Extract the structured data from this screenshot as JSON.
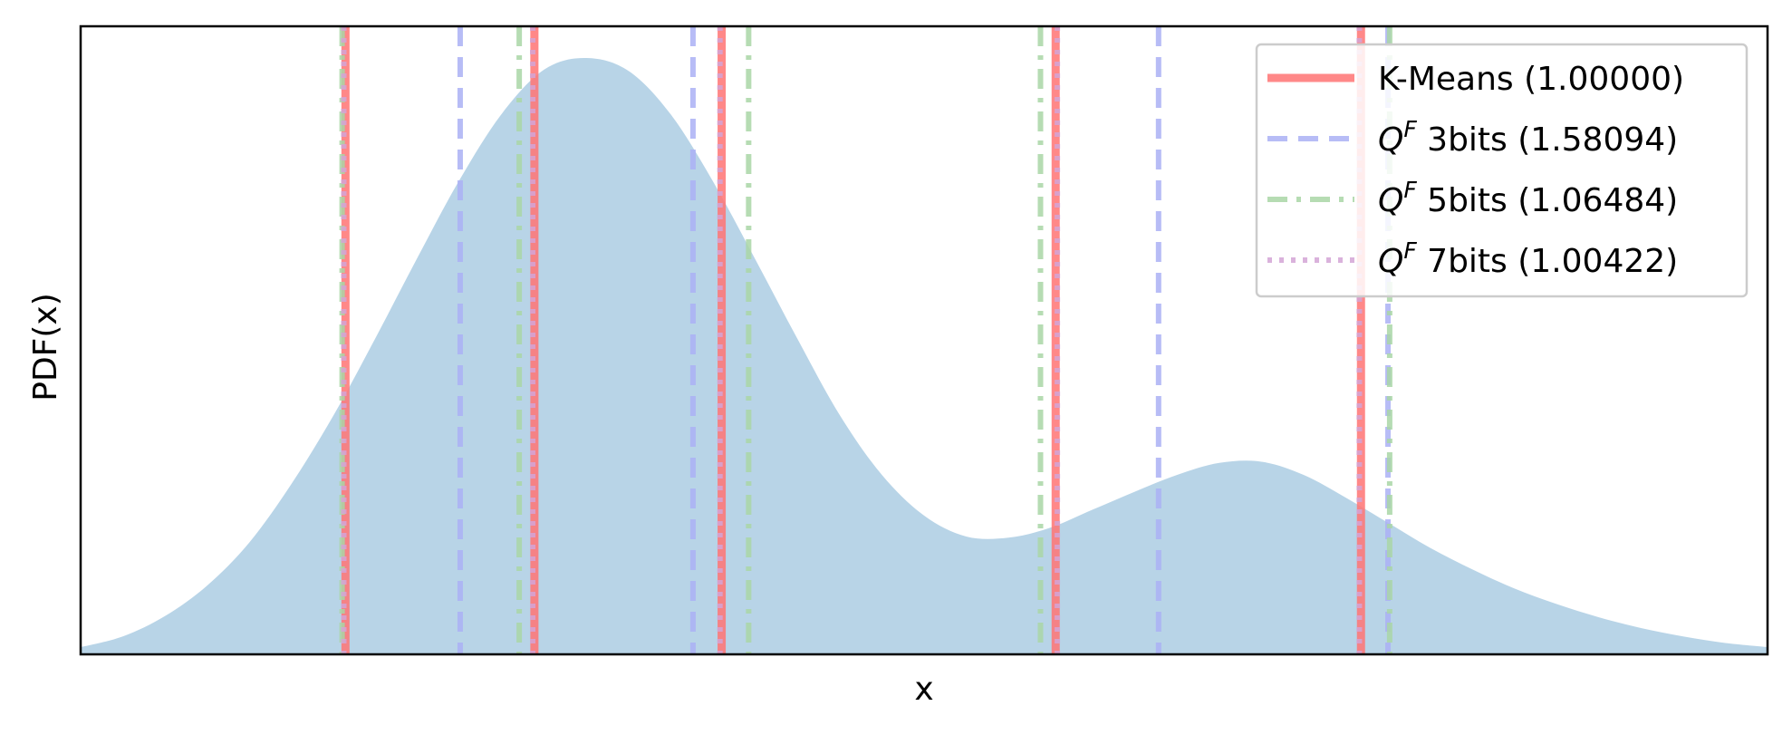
{
  "chart_data": {
    "type": "area",
    "title": "",
    "xlabel": "x",
    "ylabel": "PDF(x)",
    "xlim": [
      0,
      1
    ],
    "ylim": [
      0,
      1.05
    ],
    "x_ticks_shown": false,
    "y_ticks_shown": false,
    "grid": false,
    "legend_position": "top-right",
    "density_color": "#b8d4e7",
    "density_curve": {
      "x": [
        0.0,
        0.025,
        0.05,
        0.075,
        0.1,
        0.125,
        0.15,
        0.175,
        0.2,
        0.225,
        0.25,
        0.275,
        0.3,
        0.325,
        0.35,
        0.375,
        0.4,
        0.425,
        0.45,
        0.475,
        0.5,
        0.525,
        0.55,
        0.575,
        0.6,
        0.625,
        0.65,
        0.675,
        0.7,
        0.725,
        0.75,
        0.775,
        0.8,
        0.825,
        0.85,
        0.875,
        0.9,
        0.925,
        0.95,
        0.975,
        1.0
      ],
      "y": [
        0.012,
        0.03,
        0.064,
        0.115,
        0.187,
        0.285,
        0.4,
        0.53,
        0.665,
        0.795,
        0.905,
        0.978,
        0.997,
        0.975,
        0.902,
        0.79,
        0.66,
        0.527,
        0.4,
        0.3,
        0.232,
        0.197,
        0.195,
        0.212,
        0.242,
        0.272,
        0.3,
        0.32,
        0.322,
        0.3,
        0.262,
        0.22,
        0.178,
        0.142,
        0.11,
        0.084,
        0.062,
        0.044,
        0.03,
        0.019,
        0.012
      ]
    },
    "series": [
      {
        "name": "K-Means (1.00000)",
        "style": "solid",
        "color": "#ff7373",
        "x": [
          0.157,
          0.269,
          0.38,
          0.578,
          0.759
        ]
      },
      {
        "name": "QF 3bits (1.58094)",
        "style": "dashed",
        "color": "#aab0f5",
        "x": [
          0.225,
          0.363,
          0.639,
          0.775
        ]
      },
      {
        "name": "QF 5bits (1.06484)",
        "style": "dashdot",
        "color": "#a9d6a6",
        "x": [
          0.155,
          0.26,
          0.396,
          0.569,
          0.776
        ]
      },
      {
        "name": "QF 7bits (1.00422)",
        "style": "dotted",
        "color": "#d3a5d6",
        "x": [
          0.156,
          0.268,
          0.379,
          0.579,
          0.758
        ]
      }
    ]
  },
  "legend": {
    "items": [
      {
        "pre": "K-Means (1.00000)",
        "q": "",
        "sup": "",
        "post": ""
      },
      {
        "pre": "",
        "q": "Q",
        "sup": "F",
        "post": " 3bits (1.58094)"
      },
      {
        "pre": "",
        "q": "Q",
        "sup": "F",
        "post": " 5bits (1.06484)"
      },
      {
        "pre": "",
        "q": "Q",
        "sup": "F",
        "post": " 7bits (1.00422)"
      }
    ]
  }
}
